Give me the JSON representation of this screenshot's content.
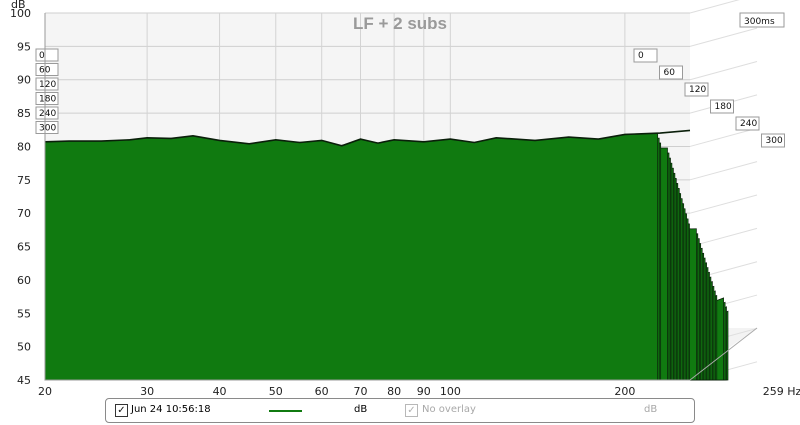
{
  "chart_data": {
    "type": "area",
    "title": "LF + 2 subs",
    "y_unit": "dB",
    "x_unit": "Hz",
    "x_scale": "log",
    "xlim": [
      20,
      259
    ],
    "ylim": [
      45,
      100
    ],
    "x_ticks": [
      20,
      30,
      40,
      50,
      60,
      70,
      80,
      90,
      100,
      200
    ],
    "x_tick_labels": [
      "20",
      "30",
      "40",
      "50",
      "60",
      "70",
      "80",
      "90",
      "100",
      "200"
    ],
    "x_end_label": "259 Hz",
    "y_ticks": [
      45,
      50,
      55,
      60,
      65,
      70,
      75,
      80,
      85,
      90,
      95,
      100
    ],
    "y_tick_labels": [
      "45",
      "50",
      "55",
      "60",
      "65",
      "70",
      "75",
      "80",
      "85",
      "90",
      "95",
      "100"
    ],
    "time_unit_label": "300ms",
    "time_ticks_left": [
      "0",
      "60",
      "120",
      "180",
      "240",
      "300"
    ],
    "time_ticks_right": [
      "0",
      "60",
      "120",
      "180",
      "240",
      "300"
    ],
    "series_color": "#107a10",
    "outline_color": "#0a1f0a",
    "floor_color": "#ececec",
    "grid": true,
    "first_slice": {
      "time_ms": 0,
      "x": [
        20,
        22,
        25,
        28,
        30,
        33,
        36,
        40,
        45,
        50,
        55,
        60,
        65,
        70,
        75,
        80,
        90,
        100,
        110,
        120,
        140,
        160,
        180,
        200,
        230,
        259
      ],
      "y": [
        80.7,
        80.8,
        80.8,
        81.0,
        81.3,
        81.2,
        81.6,
        80.9,
        80.4,
        81.0,
        80.6,
        80.9,
        80.1,
        81.1,
        80.5,
        81.0,
        80.7,
        81.1,
        80.6,
        81.3,
        80.9,
        81.4,
        81.1,
        81.8,
        82.0,
        82.4
      ]
    }
  },
  "legend": {
    "entry1_checked": "✓",
    "entry1_label": "Jun 24 10:56:18",
    "entry1_unit": "dB",
    "entry1_color": "#107a10",
    "entry2_checked": "✓",
    "entry2_label": "No overlay",
    "entry2_unit": "dB"
  }
}
